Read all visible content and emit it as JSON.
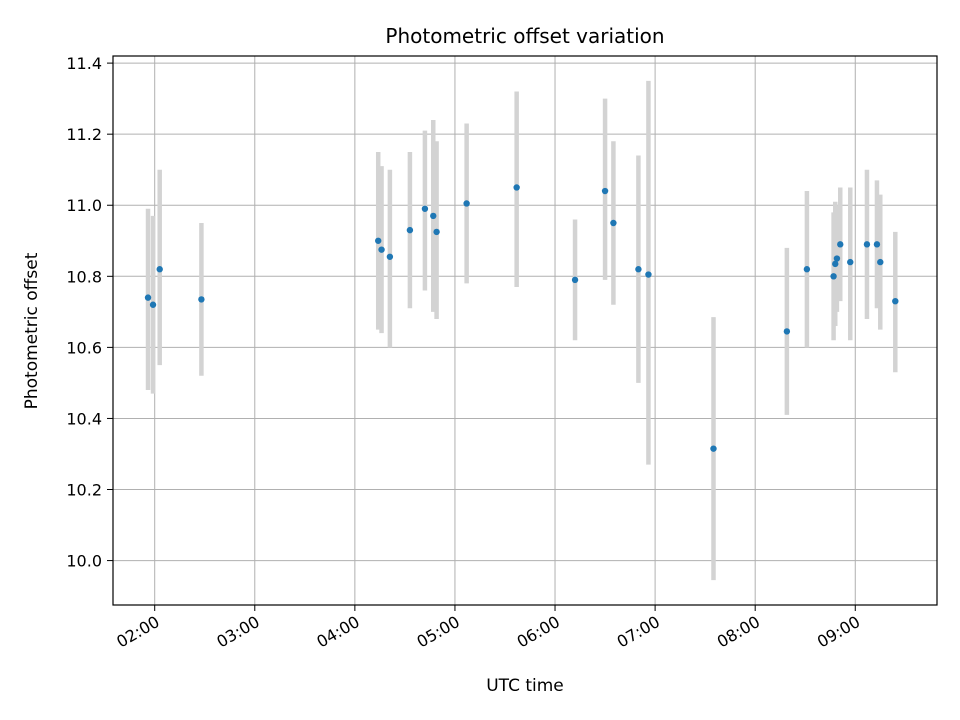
{
  "chart_data": {
    "type": "scatter",
    "title": "Photometric offset variation",
    "xlabel": "UTC time",
    "ylabel": "Photometric offset",
    "grid": true,
    "xlim": [
      "01:35",
      "09:49"
    ],
    "ylim": [
      9.875,
      11.42
    ],
    "x_ticks": [
      "02:00",
      "03:00",
      "04:00",
      "05:00",
      "06:00",
      "07:00",
      "08:00",
      "09:00"
    ],
    "y_ticks": [
      10.0,
      10.2,
      10.4,
      10.6,
      10.8,
      11.0,
      11.2,
      11.4
    ],
    "point_color": "#1f77b4",
    "errorbar_color": "#d3d3d3",
    "series": [
      {
        "points": [
          {
            "x": "01:56",
            "y": 10.74,
            "y_low": 10.48,
            "y_high": 10.99
          },
          {
            "x": "01:59",
            "y": 10.72,
            "y_low": 10.47,
            "y_high": 10.97
          },
          {
            "x": "02:03",
            "y": 10.82,
            "y_low": 10.55,
            "y_high": 11.1
          },
          {
            "x": "02:28",
            "y": 10.735,
            "y_low": 10.52,
            "y_high": 10.95
          },
          {
            "x": "04:14",
            "y": 10.9,
            "y_low": 10.65,
            "y_high": 11.15
          },
          {
            "x": "04:16",
            "y": 10.875,
            "y_low": 10.64,
            "y_high": 11.11
          },
          {
            "x": "04:21",
            "y": 10.855,
            "y_low": 10.6,
            "y_high": 11.1
          },
          {
            "x": "04:33",
            "y": 10.93,
            "y_low": 10.71,
            "y_high": 11.15
          },
          {
            "x": "04:42",
            "y": 10.99,
            "y_low": 10.76,
            "y_high": 11.21
          },
          {
            "x": "04:47",
            "y": 10.97,
            "y_low": 10.7,
            "y_high": 11.24
          },
          {
            "x": "04:49",
            "y": 10.925,
            "y_low": 10.68,
            "y_high": 11.18
          },
          {
            "x": "05:07",
            "y": 11.005,
            "y_low": 10.78,
            "y_high": 11.23
          },
          {
            "x": "05:37",
            "y": 11.05,
            "y_low": 10.77,
            "y_high": 11.32
          },
          {
            "x": "06:12",
            "y": 10.79,
            "y_low": 10.62,
            "y_high": 10.96
          },
          {
            "x": "06:30",
            "y": 11.04,
            "y_low": 10.79,
            "y_high": 11.3
          },
          {
            "x": "06:35",
            "y": 10.95,
            "y_low": 10.72,
            "y_high": 11.18
          },
          {
            "x": "06:50",
            "y": 10.82,
            "y_low": 10.5,
            "y_high": 11.14
          },
          {
            "x": "06:56",
            "y": 10.805,
            "y_low": 10.27,
            "y_high": 11.35
          },
          {
            "x": "07:35",
            "y": 10.315,
            "y_low": 9.945,
            "y_high": 10.685
          },
          {
            "x": "08:19",
            "y": 10.645,
            "y_low": 10.41,
            "y_high": 10.88
          },
          {
            "x": "08:31",
            "y": 10.82,
            "y_low": 10.6,
            "y_high": 11.04
          },
          {
            "x": "08:47",
            "y": 10.8,
            "y_low": 10.62,
            "y_high": 10.98
          },
          {
            "x": "08:48",
            "y": 10.835,
            "y_low": 10.66,
            "y_high": 11.01
          },
          {
            "x": "08:49",
            "y": 10.85,
            "y_low": 10.7,
            "y_high": 11.0
          },
          {
            "x": "08:51",
            "y": 10.89,
            "y_low": 10.73,
            "y_high": 11.05
          },
          {
            "x": "08:57",
            "y": 10.84,
            "y_low": 10.62,
            "y_high": 11.05
          },
          {
            "x": "09:07",
            "y": 10.89,
            "y_low": 10.68,
            "y_high": 11.1
          },
          {
            "x": "09:13",
            "y": 10.89,
            "y_low": 10.71,
            "y_high": 11.07
          },
          {
            "x": "09:15",
            "y": 10.84,
            "y_low": 10.65,
            "y_high": 11.03
          },
          {
            "x": "09:24",
            "y": 10.73,
            "y_low": 10.53,
            "y_high": 10.925
          }
        ]
      }
    ]
  }
}
